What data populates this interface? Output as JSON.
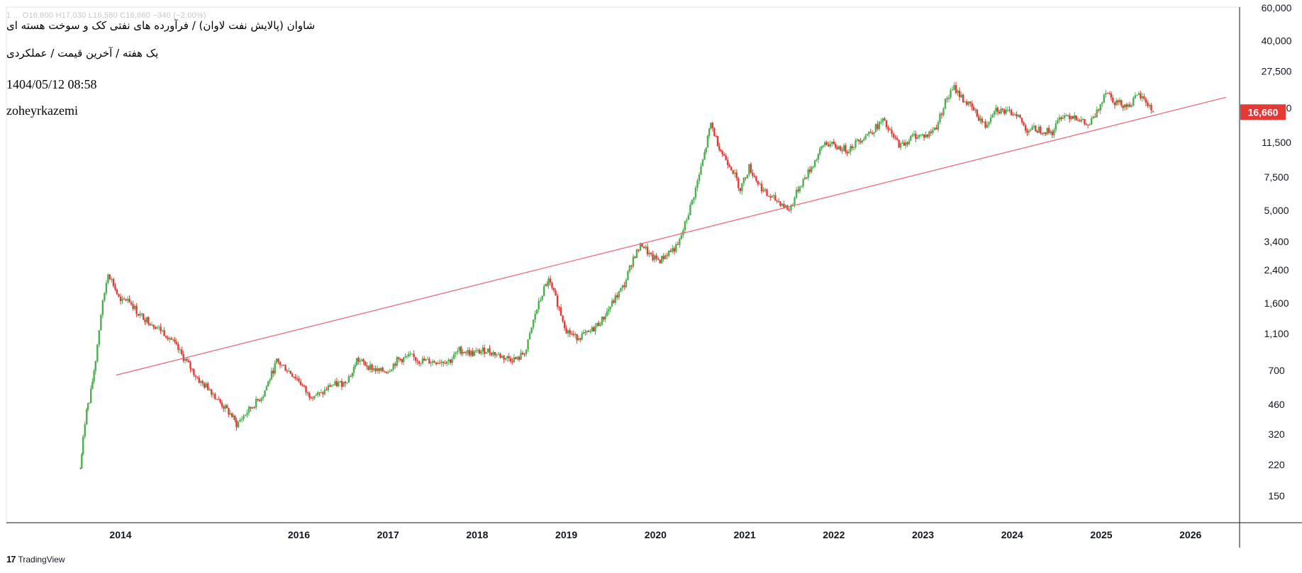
{
  "header": {
    "ticker_line": "1  ...  O16,800  H17,030  L16,580  C16,660  −340 (−2.00%)",
    "title": "شاوان (پالایش نفت لاوان) / فرآورده های نفتی کک و سوخت هسته ای",
    "subtitle": "یک هفته / آخرین قیمت / عملکردی",
    "timestamp": "1404/05/12 08:58",
    "author": "zoheyrkazemi"
  },
  "footer": {
    "logo": "17",
    "brand": "TradingView"
  },
  "colors": {
    "up": "#4caf50",
    "down": "#e53935",
    "trendline": "#f06070",
    "price_label_bg": "#e53935",
    "axis": "#787b86"
  },
  "chart_data": {
    "type": "candlestick",
    "scale": "log",
    "interval": "1W",
    "y_ticks": [
      "60,000",
      "40,000",
      "27,500",
      "17,500",
      "11,500",
      "7,500",
      "5,000",
      "3,400",
      "2,400",
      "1,600",
      "1,100",
      "700",
      "460",
      "320",
      "220",
      "150"
    ],
    "x_ticks": [
      "2014",
      "2016",
      "2017",
      "2018",
      "2019",
      "2020",
      "2021",
      "2022",
      "2023",
      "2024",
      "2025",
      "2026"
    ],
    "last_price_label": "16,660",
    "last_bar": {
      "open": 16800,
      "high": 17030,
      "low": 16580,
      "close": 16660
    },
    "trendline": {
      "start": {
        "t": 2013.95,
        "v": 660
      },
      "end": {
        "t": 2026.4,
        "v": 20000
      }
    },
    "price_path": [
      [
        2013.55,
        210
      ],
      [
        2013.58,
        300
      ],
      [
        2013.62,
        450
      ],
      [
        2013.65,
        470
      ],
      [
        2013.72,
        800
      ],
      [
        2013.78,
        1400
      ],
      [
        2013.86,
        2350
      ],
      [
        2013.94,
        1900
      ],
      [
        2014.0,
        1600
      ],
      [
        2014.08,
        1700
      ],
      [
        2014.2,
        1400
      ],
      [
        2014.35,
        1250
      ],
      [
        2014.45,
        1150
      ],
      [
        2014.55,
        1050
      ],
      [
        2014.9,
        600
      ],
      [
        2015.0,
        560
      ],
      [
        2015.1,
        480
      ],
      [
        2015.25,
        400
      ],
      [
        2015.3,
        360
      ],
      [
        2015.42,
        420
      ],
      [
        2015.6,
        520
      ],
      [
        2015.75,
        780
      ],
      [
        2015.85,
        720
      ],
      [
        2016.0,
        620
      ],
      [
        2016.1,
        520
      ],
      [
        2016.25,
        520
      ],
      [
        2016.35,
        580
      ],
      [
        2016.5,
        600
      ],
      [
        2016.6,
        680
      ],
      [
        2016.65,
        800
      ],
      [
        2016.8,
        730
      ],
      [
        2016.9,
        690
      ],
      [
        2017.0,
        700
      ],
      [
        2017.1,
        790
      ],
      [
        2017.25,
        830
      ],
      [
        2017.35,
        790
      ],
      [
        2017.5,
        780
      ],
      [
        2017.7,
        790
      ],
      [
        2017.8,
        900
      ],
      [
        2017.95,
        860
      ],
      [
        2018.1,
        900
      ],
      [
        2018.3,
        820
      ],
      [
        2018.45,
        800
      ],
      [
        2018.55,
        900
      ],
      [
        2018.65,
        1400
      ],
      [
        2018.75,
        1900
      ],
      [
        2018.8,
        2100
      ],
      [
        2018.9,
        1600
      ],
      [
        2019.0,
        1150
      ],
      [
        2019.1,
        1050
      ],
      [
        2019.25,
        1100
      ],
      [
        2019.4,
        1300
      ],
      [
        2019.55,
        1700
      ],
      [
        2019.65,
        2000
      ],
      [
        2019.75,
        2800
      ],
      [
        2019.85,
        3300
      ],
      [
        2019.95,
        2800
      ],
      [
        2020.05,
        2700
      ],
      [
        2020.15,
        3000
      ],
      [
        2020.25,
        3200
      ],
      [
        2020.35,
        4500
      ],
      [
        2020.45,
        6500
      ],
      [
        2020.55,
        10000
      ],
      [
        2020.62,
        14500
      ],
      [
        2020.68,
        12000
      ],
      [
        2020.75,
        10000
      ],
      [
        2020.85,
        8500
      ],
      [
        2020.95,
        6500
      ],
      [
        2021.05,
        8500
      ],
      [
        2021.15,
        7000
      ],
      [
        2021.25,
        6000
      ],
      [
        2021.4,
        5500
      ],
      [
        2021.5,
        5000
      ],
      [
        2021.6,
        6500
      ],
      [
        2021.75,
        8500
      ],
      [
        2021.9,
        11500
      ],
      [
        2022.0,
        11000
      ],
      [
        2022.15,
        10500
      ],
      [
        2022.3,
        12000
      ],
      [
        2022.45,
        13500
      ],
      [
        2022.55,
        15000
      ],
      [
        2022.65,
        12500
      ],
      [
        2022.75,
        11000
      ],
      [
        2022.9,
        12500
      ],
      [
        2023.05,
        12500
      ],
      [
        2023.15,
        14000
      ],
      [
        2023.25,
        19000
      ],
      [
        2023.35,
        22500
      ],
      [
        2023.45,
        19500
      ],
      [
        2023.55,
        17500
      ],
      [
        2023.7,
        14000
      ],
      [
        2023.8,
        17500
      ],
      [
        2023.95,
        16500
      ],
      [
        2024.05,
        16500
      ],
      [
        2024.15,
        13500
      ],
      [
        2024.3,
        13500
      ],
      [
        2024.45,
        13000
      ],
      [
        2024.55,
        16000
      ],
      [
        2024.7,
        16000
      ],
      [
        2024.85,
        14000
      ],
      [
        2024.95,
        16500
      ],
      [
        2025.05,
        22000
      ],
      [
        2025.15,
        19000
      ],
      [
        2025.3,
        18000
      ],
      [
        2025.42,
        20500
      ],
      [
        2025.5,
        19000
      ],
      [
        2025.58,
        16660
      ]
    ]
  }
}
